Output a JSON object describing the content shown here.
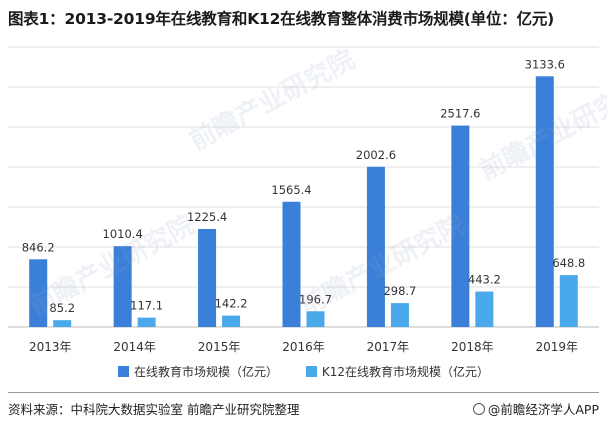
{
  "title": "图表1：2013-2019年在线教育和K12在线教育整体消费市场规模(单位：亿元)",
  "chart_data": {
    "type": "bar",
    "categories": [
      "2013年",
      "2014年",
      "2015年",
      "2016年",
      "2017年",
      "2018年",
      "2019年"
    ],
    "series": [
      {
        "name": "在线教育市场规模（亿元）",
        "values": [
          846.2,
          1010.4,
          1225.4,
          1565.4,
          2002.6,
          2517.6,
          3133.6
        ],
        "color": "#3a7fd8"
      },
      {
        "name": "K12在线教育市场规模（亿元）",
        "values": [
          85.2,
          117.1,
          142.2,
          196.7,
          298.7,
          443.2,
          648.8
        ],
        "color": "#4aa9ea"
      }
    ],
    "ylim": [
      0,
      3500
    ],
    "grid": true,
    "legend_position": "bottom-center"
  },
  "footer": {
    "source": "资料来源：中科院大数据实验室 前瞻产业研究院整理",
    "brand": "@前瞻经济学人APP"
  },
  "watermark_text": "前瞻产业研究院"
}
